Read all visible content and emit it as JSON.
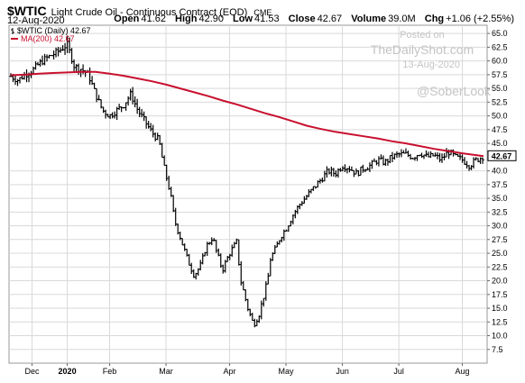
{
  "header": {
    "symbol": "$WTIC",
    "description": "Light Crude Oil - Continuous Contract (EOD)",
    "exchange": "CME",
    "date": "12-Aug-2020",
    "stats": {
      "open_label": "Open",
      "open": "41.62",
      "high_label": "High",
      "high": "42.90",
      "low_label": "Low",
      "low": "41.53",
      "close_label": "Close",
      "close": "42.67",
      "volume_label": "Volume",
      "volume": "39.0M",
      "chg_label": "Chg",
      "chg": "+1.06 (+2.55%)"
    }
  },
  "legend": {
    "price": "$WTIC (Daily) 42.67",
    "ma": "MA(200) 42.67"
  },
  "watermark": {
    "line1": "Posted on",
    "line2": "TheDailyShot.com",
    "line3": "13-Aug-2020",
    "handle": "@SoberLook"
  },
  "last_price_label": "42.67",
  "colors": {
    "price": "#000000",
    "ma": "#c8102e",
    "grid": "#d9d9d9",
    "plot_bg": "#ffffff"
  },
  "chart_data": {
    "type": "line",
    "style": "ohlc-bars",
    "x_tick_labels": [
      "Dec",
      "2020",
      "Feb",
      "Mar",
      "Apr",
      "May",
      "Jun",
      "Jul",
      "Aug"
    ],
    "x_tick_index": [
      15,
      40,
      70,
      110,
      155,
      195,
      235,
      275,
      320
    ],
    "y_ticks": [
      7.5,
      10.0,
      12.5,
      15.0,
      17.5,
      20.0,
      22.5,
      25.0,
      27.5,
      30.0,
      32.5,
      35.0,
      37.5,
      40.0,
      45.0,
      47.5,
      50.0,
      52.5,
      55.0,
      57.5,
      60.0,
      62.5,
      65.0
    ],
    "ylim": [
      5,
      66.5
    ],
    "y_axis_side": "right",
    "grid": true,
    "series": [
      {
        "name": "$WTIC (Daily)",
        "kind": "price",
        "x": [
          0,
          5,
          10,
          15,
          20,
          25,
          30,
          35,
          40,
          45,
          50,
          55,
          60,
          65,
          70,
          75,
          80,
          85,
          90,
          95,
          100,
          105,
          108,
          113,
          116,
          120,
          125,
          130,
          135,
          138,
          143,
          146,
          150,
          155,
          160,
          163,
          168,
          172,
          176,
          180,
          182,
          184,
          188,
          191,
          195,
          200,
          205,
          210,
          215,
          220,
          225,
          230,
          235,
          240,
          245,
          250,
          255,
          260,
          265,
          270,
          275,
          280,
          285,
          290,
          295,
          300,
          305,
          310,
          315,
          320,
          325,
          330,
          335
        ],
        "values": [
          57.2,
          56.5,
          57.5,
          58.2,
          59.5,
          60.5,
          61.2,
          62.0,
          63.0,
          59.0,
          58.5,
          57.5,
          54.0,
          51.0,
          50.0,
          51.0,
          52.0,
          54.0,
          51.0,
          49.0,
          47.0,
          45.5,
          41.3,
          36.0,
          31.0,
          28.0,
          24.0,
          21.0,
          23.0,
          26.0,
          28.0,
          25.0,
          22.0,
          25.0,
          27.0,
          20.0,
          15.0,
          12.0,
          14.0,
          18.0,
          20.0,
          24.0,
          26.0,
          28.0,
          29.5,
          32.0,
          34.0,
          35.5,
          37.0,
          38.5,
          40.0,
          39.5,
          41.0,
          40.5,
          39.5,
          40.5,
          41.0,
          42.0,
          41.5,
          42.5,
          43.0,
          43.0,
          42.5,
          43.3,
          42.5,
          42.8,
          42.0,
          43.5,
          42.5,
          42.0,
          41.0,
          42.0,
          42.67
        ]
      },
      {
        "name": "MA(200)",
        "kind": "moving-average",
        "x": [
          0,
          10,
          20,
          30,
          40,
          50,
          60,
          70,
          80,
          90,
          100,
          110,
          120,
          130,
          140,
          150,
          160,
          170,
          180,
          190,
          200,
          210,
          220,
          230,
          240,
          250,
          260,
          270,
          280,
          290,
          300,
          310,
          320,
          335
        ],
        "values": [
          57.4,
          57.5,
          57.7,
          57.8,
          57.9,
          58.0,
          58.0,
          57.7,
          57.3,
          56.8,
          56.3,
          55.7,
          55.0,
          54.3,
          53.6,
          52.8,
          52.1,
          51.3,
          50.5,
          49.8,
          49.0,
          48.2,
          47.6,
          47.1,
          46.7,
          46.3,
          45.9,
          45.4,
          45.0,
          44.5,
          44.0,
          43.6,
          43.2,
          42.67
        ]
      }
    ]
  }
}
